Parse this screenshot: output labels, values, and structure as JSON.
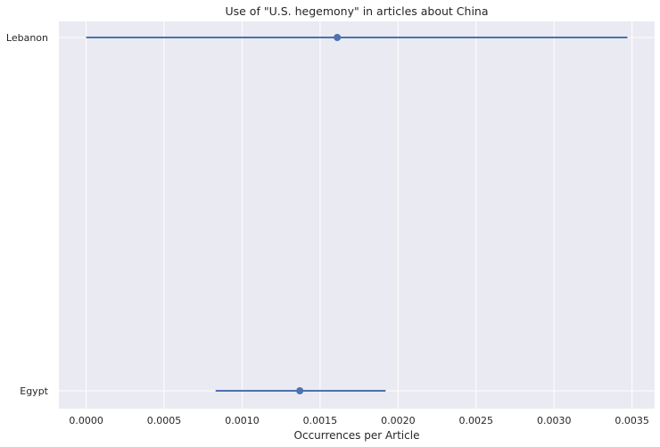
{
  "chart_data": {
    "type": "scatter",
    "title": "Use of \"U.S. hegemony\" in articles about China",
    "xlabel": "Occurrences per Article",
    "ylabel": "",
    "categories": [
      "Lebanon",
      "Egypt"
    ],
    "points": [
      {
        "category": "Lebanon",
        "value": 0.00161,
        "ci_low": 0.0,
        "ci_high": 0.00347
      },
      {
        "category": "Egypt",
        "value": 0.00137,
        "ci_low": 0.00083,
        "ci_high": 0.00192
      }
    ],
    "xlim": [
      -0.000175,
      0.003645
    ],
    "xticks": [
      "0.0000",
      "0.0005",
      "0.0010",
      "0.0015",
      "0.0020",
      "0.0025",
      "0.0030",
      "0.0035"
    ],
    "xtick_values": [
      0,
      0.0005,
      0.001,
      0.0015,
      0.002,
      0.0025,
      0.003,
      0.0035
    ],
    "grid": true,
    "legend": "none",
    "colors": {
      "background": "#eaeaf2",
      "grid": "#ffffff",
      "series": "#4c72b0"
    }
  }
}
